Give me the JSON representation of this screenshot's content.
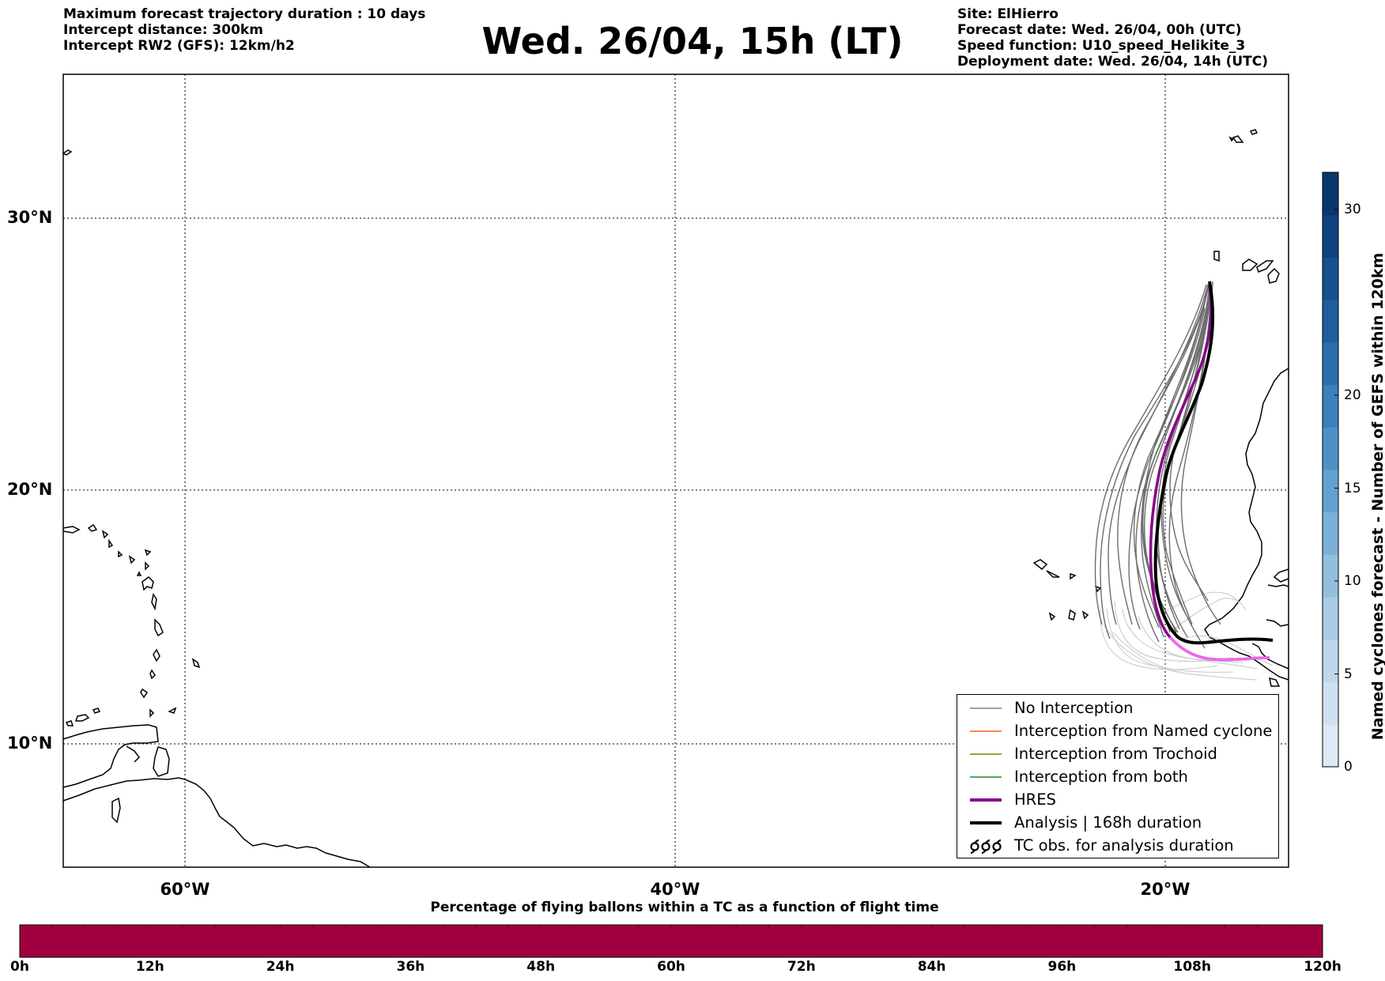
{
  "header": {
    "left_lines": [
      "Maximum forecast trajectory duration : 10 days",
      "Intercept distance: 300km",
      "Intercept RW2 (GFS):  12km/h2"
    ],
    "title": "Wed. 26/04, 15h (LT)",
    "right_lines": [
      "Site: ElHierro",
      "Forecast date: Wed. 26/04, 00h (UTC)",
      "Speed function: U10_speed_Helikite_3",
      "Deployment date: Wed. 26/04, 14h (UTC)"
    ]
  },
  "map": {
    "lat_labels": [
      "30°N",
      "20°N",
      "10°N"
    ],
    "lon_labels": [
      "60°W",
      "40°W",
      "20°W"
    ],
    "lat_values": [
      30,
      20,
      10
    ],
    "lon_values": [
      -60,
      -40,
      -20
    ],
    "extent": {
      "lon": [
        -65,
        -15
      ],
      "lat": [
        4.8,
        34.1
      ]
    },
    "grid": true
  },
  "legend": {
    "items": [
      {
        "label": "No Interception",
        "color": "#808080",
        "style": "thin-line"
      },
      {
        "label": "Interception from Named cyclone",
        "color": "#ff5a1e",
        "style": "thin-line"
      },
      {
        "label": "Interception from Trochoid",
        "color": "#808000",
        "style": "thin-line"
      },
      {
        "label": "Interception from both",
        "color": "#228b22",
        "style": "thin-line"
      },
      {
        "label": "HRES",
        "color": "#8b008b",
        "style": "thick-line"
      },
      {
        "label": "Analysis | 168h duration",
        "color": "#000000",
        "style": "thick-line"
      },
      {
        "label": "TC obs. for analysis duration",
        "color": "#000000",
        "style": "cyclone-icons"
      }
    ]
  },
  "colorbar_right": {
    "title": "Named cyclones forecast - Number of GEFS within 120km",
    "ticks": [
      "0",
      "5",
      "10",
      "15",
      "20",
      "30"
    ],
    "tick_values": [
      0,
      5,
      10,
      15,
      20,
      30
    ],
    "range": [
      0,
      32
    ],
    "colors": [
      "#dde9f6",
      "#cfe0f1",
      "#bed7ec",
      "#aacbe6",
      "#93bfdf",
      "#7bb1d8",
      "#63a2d0",
      "#4d92c7",
      "#3a80bb",
      "#2a6fad",
      "#1f5e9e",
      "#17508e",
      "#0f4280",
      "#0a3670"
    ]
  },
  "colorbar_bottom": {
    "title": "Percentage of flying ballons within a TC as a function of flight time",
    "ticks": [
      "0h",
      "12h",
      "24h",
      "36h",
      "48h",
      "60h",
      "72h",
      "84h",
      "96h",
      "108h",
      "120h"
    ],
    "tick_values_hours": [
      0,
      12,
      24,
      36,
      48,
      60,
      72,
      84,
      96,
      108,
      120
    ],
    "fill_color": "#a0003f"
  }
}
